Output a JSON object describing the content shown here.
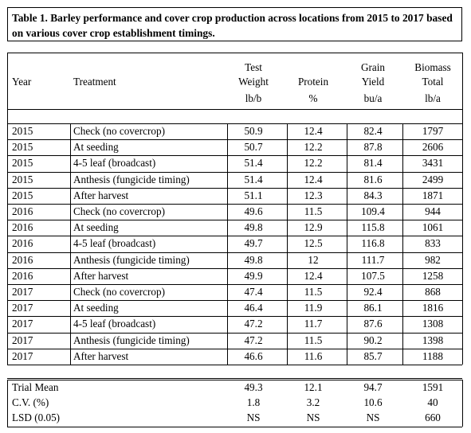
{
  "caption": "Table 1. Barley performance and cover crop production across locations from 2015 to 2017 based on various cover crop establishment timings.",
  "headers": {
    "year": "Year",
    "treatment": "Treatment",
    "test_weight_1": "Test",
    "test_weight_2": "Weight",
    "protein": "Protein",
    "yield_1": "Grain",
    "yield_2": "Yield",
    "biomass_1": "Biomass",
    "biomass_2": "Total",
    "unit_tw": "lb/b",
    "unit_protein": "%",
    "unit_yield": "bu/a",
    "unit_biomass": "lb/a"
  },
  "rows": [
    {
      "year": "2015",
      "treatment": "Check (no covercrop)",
      "tw": "50.9",
      "protein": "12.4",
      "yield": "82.4",
      "biomass": "1797"
    },
    {
      "year": "2015",
      "treatment": "At seeding",
      "tw": "50.7",
      "protein": "12.2",
      "yield": "87.8",
      "biomass": "2606"
    },
    {
      "year": "2015",
      "treatment": "4-5 leaf (broadcast)",
      "tw": "51.4",
      "protein": "12.2",
      "yield": "81.4",
      "biomass": "3431"
    },
    {
      "year": "2015",
      "treatment": "Anthesis (fungicide timing)",
      "tw": "51.4",
      "protein": "12.4",
      "yield": "81.6",
      "biomass": "2499"
    },
    {
      "year": "2015",
      "treatment": "After harvest",
      "tw": "51.1",
      "protein": "12.3",
      "yield": "84.3",
      "biomass": "1871"
    },
    {
      "year": "2016",
      "treatment": "Check (no covercrop)",
      "tw": "49.6",
      "protein": "11.5",
      "yield": "109.4",
      "biomass": "944"
    },
    {
      "year": "2016",
      "treatment": "At seeding",
      "tw": "49.8",
      "protein": "12.9",
      "yield": "115.8",
      "biomass": "1061"
    },
    {
      "year": "2016",
      "treatment": "4-5 leaf (broadcast)",
      "tw": "49.7",
      "protein": "12.5",
      "yield": "116.8",
      "biomass": "833"
    },
    {
      "year": "2016",
      "treatment": "Anthesis (fungicide timing)",
      "tw": "49.8",
      "protein": "12",
      "yield": "111.7",
      "biomass": "982"
    },
    {
      "year": "2016",
      "treatment": "After harvest",
      "tw": "49.9",
      "protein": "12.4",
      "yield": "107.5",
      "biomass": "1258"
    },
    {
      "year": "2017",
      "treatment": "Check (no covercrop)",
      "tw": "47.4",
      "protein": "11.5",
      "yield": "92.4",
      "biomass": "868"
    },
    {
      "year": "2017",
      "treatment": "At seeding",
      "tw": "46.4",
      "protein": "11.9",
      "yield": "86.1",
      "biomass": "1816"
    },
    {
      "year": "2017",
      "treatment": "4-5 leaf (broadcast)",
      "tw": "47.2",
      "protein": "11.7",
      "yield": "87.6",
      "biomass": "1308"
    },
    {
      "year": "2017",
      "treatment": "Anthesis (fungicide timing)",
      "tw": "47.2",
      "protein": "11.5",
      "yield": "90.2",
      "biomass": "1398"
    },
    {
      "year": "2017",
      "treatment": "After harvest",
      "tw": "46.6",
      "protein": "11.6",
      "yield": "85.7",
      "biomass": "1188"
    }
  ],
  "summary": [
    {
      "label": "Trial Mean",
      "tw": "49.3",
      "protein": "12.1",
      "yield": "94.7",
      "biomass": "1591"
    },
    {
      "label": "C.V. (%)",
      "tw": "1.8",
      "protein": "3.2",
      "yield": "10.6",
      "biomass": "40"
    },
    {
      "label": "LSD (0.05)",
      "tw": "NS",
      "protein": "NS",
      "yield": "NS",
      "biomass": "660"
    }
  ]
}
